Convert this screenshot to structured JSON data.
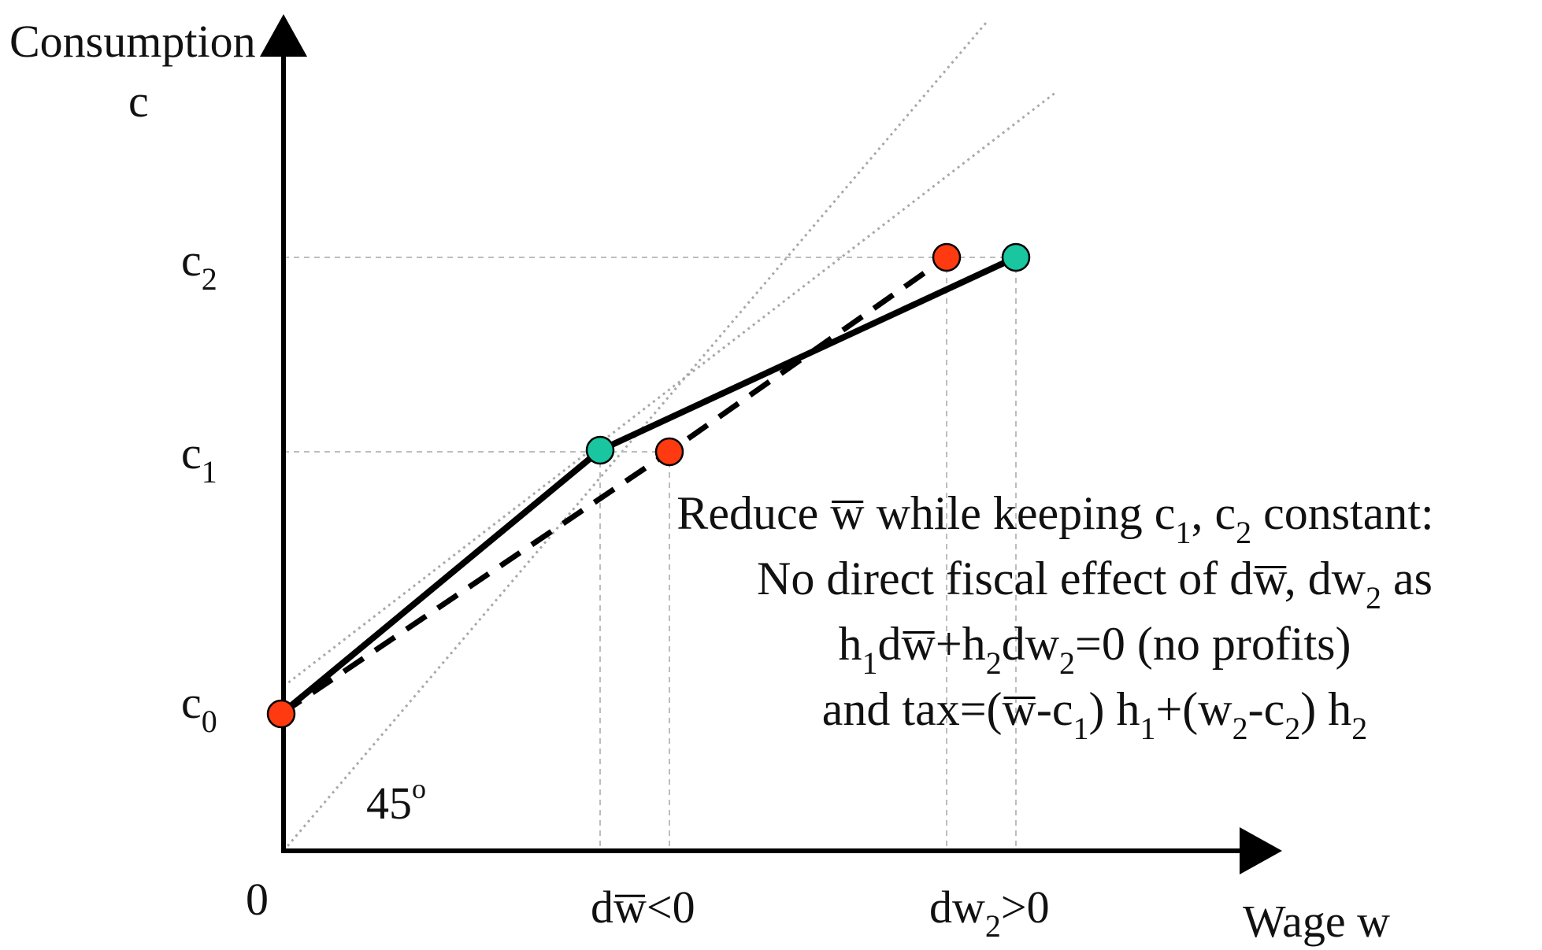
{
  "axes": {
    "y_label": "Consumption",
    "y_symbol": "c",
    "x_label": "Wage w",
    "origin": "0"
  },
  "y_ticks": {
    "c0": {
      "base": "c",
      "sub": "0"
    },
    "c1": {
      "base": "c",
      "sub": "1"
    },
    "c2": {
      "base": "c",
      "sub": "2"
    }
  },
  "x_ticks": {
    "dwbar": {
      "pre": "d",
      "w": "w",
      "rest": "<0"
    },
    "dw2": {
      "pre": "dw",
      "sub": "2",
      "rest": ">0"
    }
  },
  "angle_label": {
    "value": "45",
    "sup": "o"
  },
  "annotation": {
    "line1": {
      "a": "Reduce ",
      "w": "w",
      "b": " while keeping c",
      "s1": "1",
      "c": ", c",
      "s2": "2",
      "d": " constant:"
    },
    "line2": {
      "a": "No direct fiscal effect of d",
      "w": "w",
      "b": ", dw",
      "s1": "2",
      "c": " as"
    },
    "line3": {
      "a": "h",
      "s1": "1",
      "b": "d",
      "w": "w",
      "c": "+h",
      "s2": "2",
      "d": "dw",
      "s3": "2",
      "e": "=0 (no profits)"
    },
    "line4": {
      "a": "and tax=(",
      "w": "w",
      "b": "-c",
      "s1": "1",
      "c": ") h",
      "s2": "1",
      "d": "+(w",
      "s3": "2",
      "e": "-c",
      "s4": "2",
      "f": ") h",
      "s5": "2"
    }
  },
  "colors": {
    "before_point": "#19c6a0",
    "after_point": "#ff3a10",
    "axis": "#000000"
  },
  "points": {
    "origin_c0": {
      "role": "both",
      "color": "after_point"
    },
    "before_1": {
      "label": "(w̄, c1)",
      "color": "before_point"
    },
    "before_2": {
      "label": "(w2, c2)",
      "color": "before_point"
    },
    "after_1": {
      "label": "(w̄ + dw̄, c1)",
      "color": "after_point"
    },
    "after_2": {
      "label": "(w2 + dw2, c2)",
      "color": "after_point"
    }
  },
  "lines": {
    "before": "solid",
    "after": "dashed"
  }
}
